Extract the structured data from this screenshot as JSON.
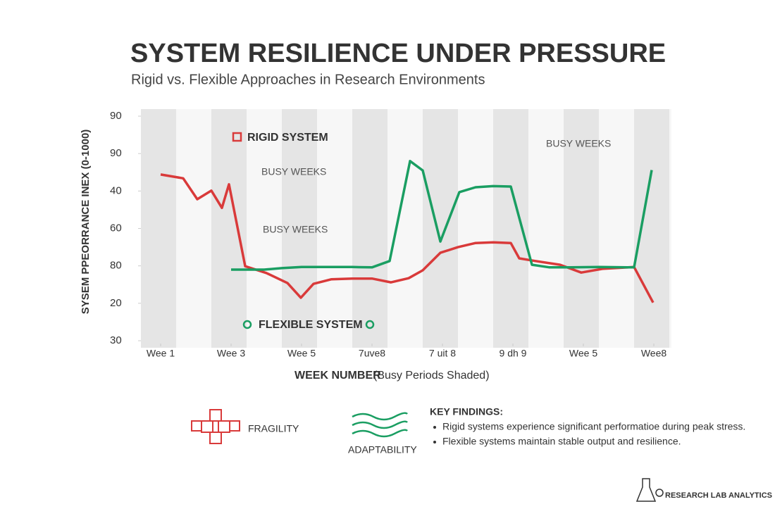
{
  "chart_data": {
    "type": "line",
    "title": "SYSTEM RESILIENCE UNDER PRESSURE",
    "subtitle": "Rigid vs. Flexible Approaches in Research Environments",
    "y_label": "SYSEM PPEORRANCE INEX (0-1000)",
    "x_label": "WEEK NUMBER",
    "x_label_note": "(Busy Periods Shaded)",
    "xlim": [
      -0.28,
      7.25
    ],
    "xticks": [
      {
        "value": 0,
        "label": "Wee 1"
      },
      {
        "value": 1,
        "label": "Wee 3"
      },
      {
        "value": 2,
        "label": "Wee 5"
      },
      {
        "value": 3,
        "label": "7uve8"
      },
      {
        "value": 4,
        "label": "7 uit 8"
      },
      {
        "value": 5,
        "label": "9 dh 9"
      },
      {
        "value": 6,
        "label": "Wee 5"
      },
      {
        "value": 7,
        "label": "Wee8"
      }
    ],
    "ylim": [
      0,
      6
    ],
    "yticks": [
      {
        "value": 0,
        "label": "30"
      },
      {
        "value": 1,
        "label": "20"
      },
      {
        "value": 2,
        "label": "80"
      },
      {
        "value": 3,
        "label": "60"
      },
      {
        "value": 4,
        "label": "40"
      },
      {
        "value": 5,
        "label": "90"
      },
      {
        "value": 6,
        "label": "90"
      }
    ],
    "shaded_bands": true,
    "series": [
      {
        "name": "RIGID SYSTEM",
        "color": "#d93a3a",
        "x": [
          0,
          0.32,
          0.52,
          0.72,
          0.87,
          0.97,
          1.2,
          1.5,
          1.8,
          1.99,
          2.17,
          2.42,
          2.72,
          3.0,
          3.27,
          3.52,
          3.72,
          3.97,
          4.22,
          4.47,
          4.72,
          4.97,
          5.09,
          5.32,
          5.67,
          5.97,
          6.27,
          6.72,
          6.99
        ],
        "values": [
          4.44,
          4.34,
          3.78,
          4.01,
          3.55,
          4.18,
          1.99,
          1.81,
          1.54,
          1.15,
          1.52,
          1.64,
          1.66,
          1.66,
          1.56,
          1.67,
          1.88,
          2.35,
          2.5,
          2.61,
          2.63,
          2.61,
          2.2,
          2.13,
          2.03,
          1.82,
          1.92,
          1.97,
          1.02
        ]
      },
      {
        "name": "FLEXIBLE SYSTEM",
        "color": "#1a9e62",
        "x": [
          1.0,
          1.47,
          1.72,
          2.0,
          2.72,
          3.0,
          3.25,
          3.54,
          3.72,
          3.97,
          4.24,
          4.47,
          4.72,
          4.97,
          5.27,
          5.52,
          5.82,
          6.22,
          6.72,
          6.97
        ],
        "values": [
          1.9,
          1.9,
          1.94,
          1.97,
          1.97,
          1.96,
          2.13,
          4.8,
          4.55,
          2.65,
          3.97,
          4.1,
          4.13,
          4.12,
          2.03,
          1.96,
          1.96,
          1.97,
          1.96,
          4.56
        ]
      }
    ],
    "annotations": [
      "BUSY WEEKS",
      "BUSY WEEKS",
      "BUSY WEEKS"
    ]
  },
  "footer": {
    "icon_labels": [
      "FRAGILITY",
      "ADAPTABILITY"
    ],
    "findings_title": "KEY FINDINGS:",
    "findings": [
      "Rigid systems experience significant performatioe during peak stress.",
      "Flexible systems maintain stable output and resilience."
    ],
    "brand": "RESEARCH LAB ANALYTICS"
  }
}
